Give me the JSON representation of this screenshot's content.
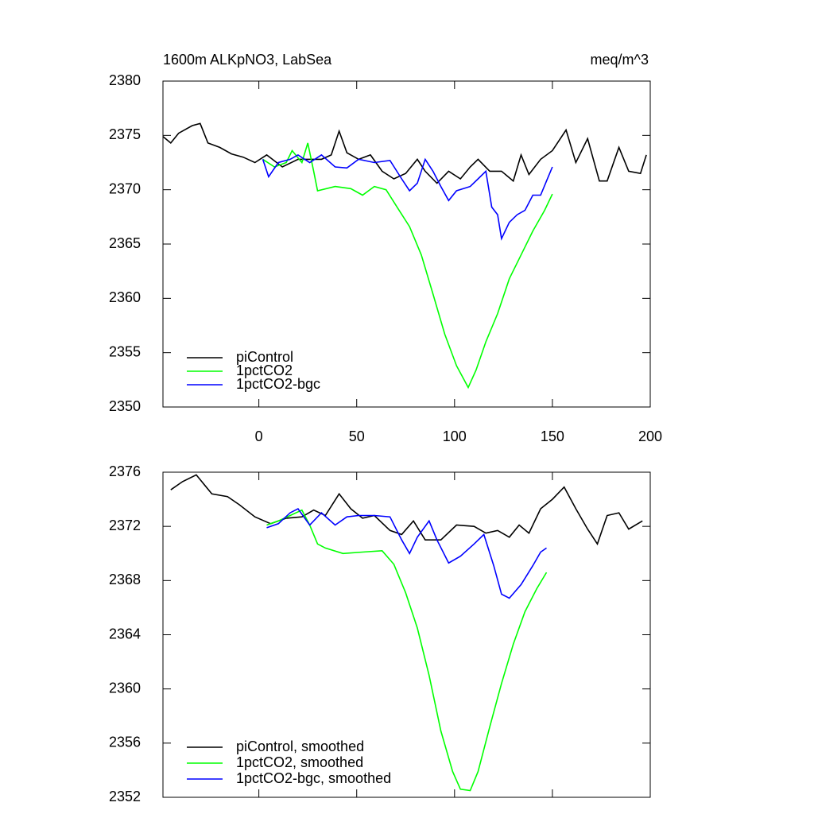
{
  "chart_data": [
    {
      "type": "line",
      "title": "1600m ALKpNO3, LabSea",
      "units": "meq/m^3",
      "xlim": [
        -49,
        200
      ],
      "xticks": [
        0,
        50,
        100,
        150,
        200
      ],
      "x_tick_labels_shown": true,
      "ylim": [
        2350,
        2380
      ],
      "yticks": [
        2350,
        2355,
        2360,
        2365,
        2370,
        2375,
        2380
      ],
      "legend": "lower left",
      "series": [
        {
          "name": "piControl",
          "color": "#000000",
          "x": [
            -49,
            -45,
            -41,
            -34,
            -30,
            -26,
            -20,
            -14,
            -8,
            -2,
            4,
            12,
            20,
            32,
            37,
            41,
            45,
            51,
            57,
            63,
            69,
            75,
            81,
            85,
            91,
            97,
            103,
            108,
            112,
            118,
            124,
            130,
            134,
            138,
            144,
            150,
            157,
            162,
            168,
            174,
            178,
            184,
            189,
            195,
            198
          ],
          "values": [
            2374.9,
            2374.3,
            2375.2,
            2375.9,
            2376.1,
            2374.3,
            2373.9,
            2373.3,
            2373.0,
            2372.5,
            2373.2,
            2372.1,
            2372.8,
            2372.8,
            2373.2,
            2375.4,
            2373.4,
            2372.8,
            2373.2,
            2371.7,
            2371.0,
            2371.5,
            2372.8,
            2371.7,
            2370.6,
            2371.7,
            2371.0,
            2372.1,
            2372.8,
            2371.7,
            2371.7,
            2370.8,
            2373.2,
            2371.4,
            2372.8,
            2373.6,
            2375.5,
            2372.5,
            2374.7,
            2370.8,
            2370.8,
            2373.9,
            2371.7,
            2371.5,
            2373.2
          ]
        },
        {
          "name": "1pctCO2",
          "color": "#00ff00",
          "x": [
            2,
            8,
            14,
            17,
            22,
            25,
            28,
            30,
            39,
            47,
            53,
            59,
            65,
            71,
            77,
            83,
            89,
            95,
            101,
            107,
            111,
            116,
            122,
            128,
            134,
            140,
            146,
            150
          ],
          "values": [
            2372.8,
            2372.1,
            2372.5,
            2373.6,
            2372.5,
            2374.3,
            2371.7,
            2369.9,
            2370.3,
            2370.1,
            2369.5,
            2370.3,
            2370.0,
            2368.3,
            2366.6,
            2364.0,
            2360.4,
            2356.7,
            2353.8,
            2351.8,
            2353.4,
            2356.0,
            2358.6,
            2361.8,
            2364.0,
            2366.2,
            2368.1,
            2369.6
          ]
        },
        {
          "name": "1pctCO2-bgc",
          "color": "#0000ff",
          "x": [
            2,
            5,
            10,
            16,
            20,
            26,
            32,
            39,
            45,
            51,
            59,
            67,
            73,
            77,
            81,
            85,
            89,
            93,
            97,
            101,
            108,
            112,
            116,
            119,
            122,
            124,
            128,
            132,
            136,
            140,
            144,
            147,
            150
          ],
          "values": [
            2372.8,
            2371.2,
            2372.5,
            2372.8,
            2373.2,
            2372.5,
            2373.2,
            2372.1,
            2372.0,
            2372.8,
            2372.5,
            2372.7,
            2371.0,
            2369.9,
            2370.6,
            2372.8,
            2371.7,
            2370.3,
            2369.0,
            2369.9,
            2370.3,
            2371.0,
            2371.7,
            2368.4,
            2367.7,
            2365.5,
            2367.0,
            2367.7,
            2368.1,
            2369.5,
            2369.5,
            2370.8,
            2372.1
          ]
        }
      ]
    },
    {
      "type": "line",
      "xlim": [
        -49,
        200
      ],
      "xticks": [
        0,
        50,
        100,
        150,
        200
      ],
      "x_tick_labels_shown": false,
      "ylim": [
        2352,
        2376
      ],
      "yticks": [
        2352,
        2356,
        2360,
        2364,
        2368,
        2372,
        2376
      ],
      "legend": "lower left",
      "series": [
        {
          "name": "piControl, smoothed",
          "color": "#000000",
          "x": [
            -45,
            -39,
            -32,
            -24,
            -16,
            -10,
            -2,
            6,
            14,
            22,
            28,
            34,
            41,
            47,
            53,
            59,
            67,
            73,
            79,
            85,
            93,
            101,
            110,
            116,
            122,
            128,
            133,
            138,
            144,
            150,
            156,
            162,
            168,
            173,
            178,
            184,
            189,
            196
          ],
          "values": [
            2374.7,
            2375.3,
            2375.8,
            2374.4,
            2374.2,
            2373.6,
            2372.7,
            2372.2,
            2372.6,
            2372.7,
            2373.2,
            2372.8,
            2374.4,
            2373.3,
            2372.6,
            2372.8,
            2371.7,
            2371.4,
            2372.4,
            2371.0,
            2371.0,
            2372.1,
            2372.0,
            2371.5,
            2371.7,
            2371.2,
            2372.1,
            2371.5,
            2373.3,
            2374.0,
            2374.9,
            2373.3,
            2371.8,
            2370.7,
            2372.8,
            2373.0,
            2371.8,
            2372.4
          ]
        },
        {
          "name": "1pctCO2, smoothed",
          "color": "#00ff00",
          "x": [
            4,
            10,
            16,
            22,
            26,
            30,
            34,
            43,
            53,
            63,
            69,
            75,
            81,
            87,
            93,
            99,
            103,
            108,
            112,
            118,
            124,
            130,
            136,
            142,
            147
          ],
          "values": [
            2372.1,
            2372.4,
            2372.8,
            2373.2,
            2372.1,
            2370.7,
            2370.4,
            2370.0,
            2370.1,
            2370.2,
            2369.2,
            2367.1,
            2364.5,
            2361.0,
            2356.9,
            2353.9,
            2352.6,
            2352.5,
            2353.9,
            2357.2,
            2360.4,
            2363.3,
            2365.7,
            2367.4,
            2368.6
          ]
        },
        {
          "name": "1pctCO2-bgc, smoothed",
          "color": "#0000ff",
          "x": [
            4,
            10,
            16,
            20,
            26,
            32,
            39,
            45,
            51,
            59,
            67,
            73,
            77,
            81,
            87,
            91,
            97,
            103,
            110,
            115,
            120,
            124,
            128,
            134,
            140,
            144,
            147
          ],
          "values": [
            2371.9,
            2372.2,
            2373.0,
            2373.3,
            2372.1,
            2373.0,
            2372.1,
            2372.7,
            2372.8,
            2372.8,
            2372.7,
            2371.0,
            2370.0,
            2371.2,
            2372.4,
            2371.0,
            2369.3,
            2369.8,
            2370.7,
            2371.4,
            2369.1,
            2367.0,
            2366.7,
            2367.7,
            2369.1,
            2370.1,
            2370.4
          ]
        }
      ]
    }
  ]
}
